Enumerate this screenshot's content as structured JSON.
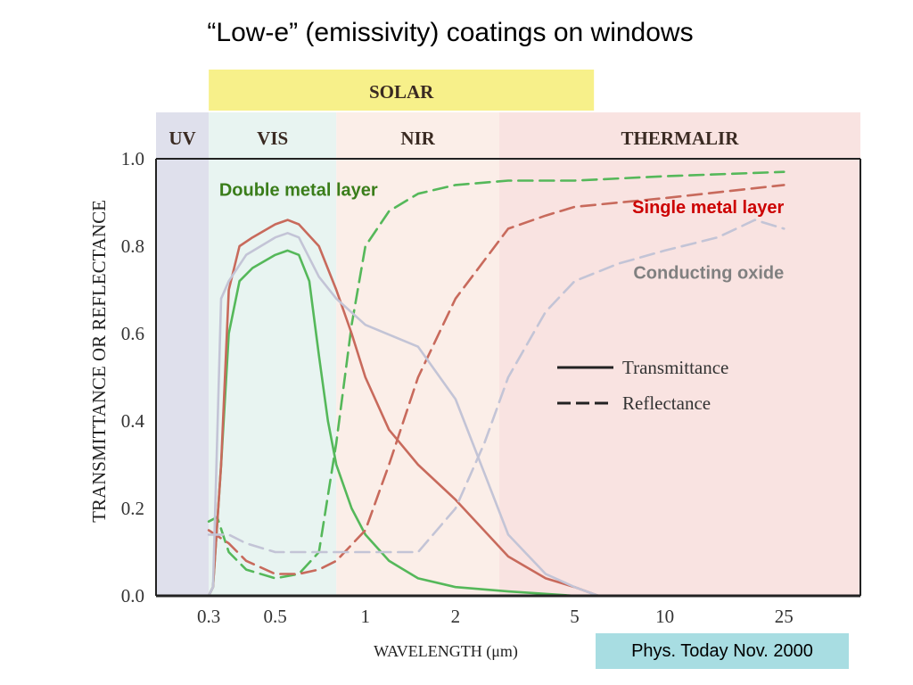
{
  "slide": {
    "title": "“Low-e” (emissivity) coatings on windows",
    "citation": "Phys. Today Nov. 2000"
  },
  "colors": {
    "double": "#55b85a",
    "single": "#c86a5c",
    "oxide": "#c3c4d6",
    "double_label": "#3a7d1a",
    "single_label": "#cc0000",
    "oxide_label": "#808080",
    "solar_band": "#f7f08a",
    "uv_band": "#dfe0ec",
    "vis_band": "#e8f4f1",
    "nir_band": "#fbeee8",
    "thermal_band": "#f9e3e1"
  },
  "chart_data": {
    "type": "line",
    "xscale": "log",
    "xlabel": "WAVELENGTH (μm)",
    "ylabel": "TRANSMITTANCE OR REFLECTANCE",
    "xlim": [
      0.2,
      45
    ],
    "ylim": [
      0,
      1.0
    ],
    "x_ticks": [
      0.3,
      0.5,
      1,
      2,
      5,
      10,
      25
    ],
    "x_tick_labels": [
      "0.3",
      "0.5",
      "1",
      "2",
      "5",
      "10",
      "25"
    ],
    "y_ticks": [
      0,
      0.2,
      0.4,
      0.6,
      0.8,
      1.0
    ],
    "y_tick_labels": [
      "0.0",
      "0.2",
      "0.4",
      "0.6",
      "0.8",
      "1.0"
    ],
    "bands": [
      {
        "label": "UV",
        "range": [
          0.2,
          0.3
        ]
      },
      {
        "label": "VIS",
        "range": [
          0.3,
          0.8
        ]
      },
      {
        "label": "NIR",
        "range": [
          0.8,
          2.8
        ]
      },
      {
        "label": "THERMALIR",
        "range": [
          2.8,
          45
        ]
      }
    ],
    "solar_band": {
      "label": "SOLAR",
      "range": [
        0.3,
        5.8
      ]
    },
    "series": [
      {
        "name": "Double metal layer",
        "kind": "transmittance",
        "points": [
          [
            0.3,
            0.0
          ],
          [
            0.31,
            0.02
          ],
          [
            0.33,
            0.3
          ],
          [
            0.35,
            0.6
          ],
          [
            0.38,
            0.72
          ],
          [
            0.42,
            0.75
          ],
          [
            0.5,
            0.78
          ],
          [
            0.55,
            0.79
          ],
          [
            0.6,
            0.78
          ],
          [
            0.65,
            0.72
          ],
          [
            0.7,
            0.55
          ],
          [
            0.75,
            0.4
          ],
          [
            0.8,
            0.3
          ],
          [
            0.9,
            0.2
          ],
          [
            1.0,
            0.14
          ],
          [
            1.2,
            0.08
          ],
          [
            1.5,
            0.04
          ],
          [
            2.0,
            0.02
          ],
          [
            3.0,
            0.01
          ],
          [
            5.0,
            0.0
          ]
        ]
      },
      {
        "name": "Double metal layer",
        "kind": "reflectance",
        "points": [
          [
            0.3,
            0.17
          ],
          [
            0.32,
            0.18
          ],
          [
            0.35,
            0.1
          ],
          [
            0.4,
            0.06
          ],
          [
            0.5,
            0.04
          ],
          [
            0.6,
            0.05
          ],
          [
            0.7,
            0.1
          ],
          [
            0.8,
            0.35
          ],
          [
            0.9,
            0.62
          ],
          [
            1.0,
            0.8
          ],
          [
            1.2,
            0.88
          ],
          [
            1.5,
            0.92
          ],
          [
            2.0,
            0.94
          ],
          [
            3.0,
            0.95
          ],
          [
            5.0,
            0.95
          ],
          [
            10,
            0.96
          ],
          [
            25,
            0.97
          ]
        ]
      },
      {
        "name": "Single metal layer",
        "kind": "transmittance",
        "points": [
          [
            0.3,
            0.0
          ],
          [
            0.31,
            0.02
          ],
          [
            0.33,
            0.3
          ],
          [
            0.35,
            0.7
          ],
          [
            0.38,
            0.8
          ],
          [
            0.42,
            0.82
          ],
          [
            0.5,
            0.85
          ],
          [
            0.55,
            0.86
          ],
          [
            0.6,
            0.85
          ],
          [
            0.7,
            0.8
          ],
          [
            0.8,
            0.7
          ],
          [
            0.9,
            0.6
          ],
          [
            1.0,
            0.5
          ],
          [
            1.2,
            0.38
          ],
          [
            1.5,
            0.3
          ],
          [
            2.0,
            0.22
          ],
          [
            3.0,
            0.09
          ],
          [
            4.0,
            0.04
          ],
          [
            5.0,
            0.02
          ],
          [
            6.0,
            0.0
          ]
        ]
      },
      {
        "name": "Single metal layer",
        "kind": "reflectance",
        "points": [
          [
            0.3,
            0.15
          ],
          [
            0.35,
            0.12
          ],
          [
            0.4,
            0.08
          ],
          [
            0.5,
            0.05
          ],
          [
            0.6,
            0.05
          ],
          [
            0.7,
            0.06
          ],
          [
            0.8,
            0.08
          ],
          [
            1.0,
            0.15
          ],
          [
            1.2,
            0.3
          ],
          [
            1.5,
            0.5
          ],
          [
            2.0,
            0.68
          ],
          [
            3.0,
            0.84
          ],
          [
            4.0,
            0.87
          ],
          [
            5.0,
            0.89
          ],
          [
            10,
            0.91
          ],
          [
            25,
            0.94
          ]
        ]
      },
      {
        "name": "Conducting oxide",
        "kind": "transmittance",
        "points": [
          [
            0.3,
            0.0
          ],
          [
            0.31,
            0.02
          ],
          [
            0.33,
            0.68
          ],
          [
            0.35,
            0.72
          ],
          [
            0.4,
            0.78
          ],
          [
            0.5,
            0.82
          ],
          [
            0.55,
            0.83
          ],
          [
            0.6,
            0.82
          ],
          [
            0.7,
            0.73
          ],
          [
            0.8,
            0.68
          ],
          [
            1.0,
            0.62
          ],
          [
            1.5,
            0.57
          ],
          [
            2.0,
            0.45
          ],
          [
            2.5,
            0.28
          ],
          [
            3.0,
            0.14
          ],
          [
            4.0,
            0.05
          ],
          [
            5.0,
            0.02
          ],
          [
            6.0,
            0.0
          ]
        ]
      },
      {
        "name": "Conducting oxide",
        "kind": "reflectance",
        "points": [
          [
            0.3,
            0.14
          ],
          [
            0.35,
            0.14
          ],
          [
            0.4,
            0.12
          ],
          [
            0.5,
            0.1
          ],
          [
            0.7,
            0.1
          ],
          [
            1.0,
            0.1
          ],
          [
            1.5,
            0.1
          ],
          [
            2.0,
            0.2
          ],
          [
            2.5,
            0.35
          ],
          [
            3.0,
            0.5
          ],
          [
            4.0,
            0.65
          ],
          [
            5.0,
            0.72
          ],
          [
            7.0,
            0.76
          ],
          [
            10,
            0.79
          ],
          [
            15,
            0.82
          ],
          [
            20,
            0.86
          ],
          [
            25,
            0.84
          ]
        ]
      }
    ],
    "legend": {
      "placement": "middle-right",
      "entries": [
        {
          "style": "solid",
          "label": "Transmittance"
        },
        {
          "style": "dashed",
          "label": "Reflectance"
        }
      ]
    },
    "annotations": [
      {
        "text": "Double metal layer",
        "x": 1.1,
        "y": 0.93
      },
      {
        "text": "Single metal layer",
        "x": 25,
        "y": 0.89
      },
      {
        "text": "Conducting oxide",
        "x": 25,
        "y": 0.74
      }
    ]
  }
}
